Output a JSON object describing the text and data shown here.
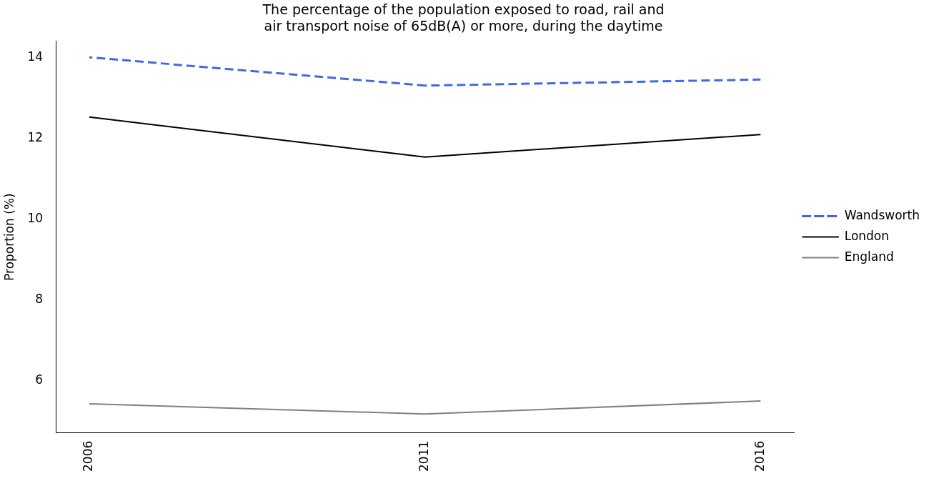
{
  "chart_data": {
    "type": "line",
    "title": "The percentage of the population exposed to road, rail and\nair transport noise of 65dB(A) or more, during the daytime",
    "ylabel": "Proportion (%)",
    "x": [
      2006,
      2011,
      2016
    ],
    "xlim": [
      2005.5,
      2016.5
    ],
    "xticks": [
      2006,
      2011,
      2016
    ],
    "ylim": [
      4.7,
      14.4
    ],
    "yticks": [
      6,
      8,
      10,
      12,
      14
    ],
    "series": [
      {
        "name": "Wandsworth",
        "color": "#4169e1",
        "values": [
          14.0,
          13.3,
          13.45
        ],
        "line_style": "dashed"
      },
      {
        "name": "London",
        "color": "#000000",
        "values": [
          12.52,
          11.53,
          12.09
        ]
      },
      {
        "name": "England",
        "color": "#808080",
        "values": [
          5.42,
          5.17,
          5.49
        ]
      }
    ],
    "grid": false,
    "legend": "right",
    "marker": "none"
  }
}
